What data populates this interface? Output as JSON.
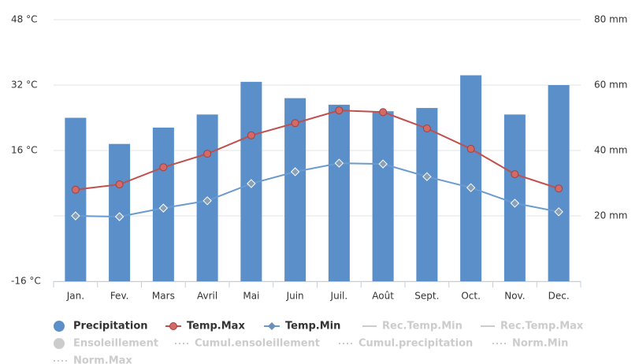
{
  "chart_data": {
    "type": "bar-line",
    "categories": [
      "Jan.",
      "Fev.",
      "Mars",
      "Avril",
      "Mai",
      "Juin",
      "Juil.",
      "Août",
      "Sept.",
      "Oct.",
      "Nov.",
      "Dec."
    ],
    "series": [
      {
        "name": "Precipitation",
        "type": "bar",
        "axis": "y2",
        "color": "#5b8fc9",
        "values": [
          50,
          42,
          47,
          51,
          61,
          56,
          54,
          52,
          53,
          63,
          51,
          60
        ]
      },
      {
        "name": "Temp.Max",
        "type": "line",
        "marker": "circle",
        "color": "#c0504d",
        "values": [
          6.4,
          7.7,
          11.9,
          15.2,
          19.7,
          22.7,
          25.8,
          25.4,
          21.4,
          16.4,
          10.2,
          6.7
        ]
      },
      {
        "name": "Temp.Min",
        "type": "line",
        "marker": "diamond",
        "color": "#6a9bd0",
        "values": [
          0,
          -0.2,
          1.9,
          3.7,
          7.9,
          10.8,
          12.9,
          12.7,
          9.6,
          6.9,
          3.1,
          1.0
        ]
      }
    ],
    "hidden_series": [
      {
        "name": "Rec.Temp.Min",
        "marker": "line"
      },
      {
        "name": "Rec.Temp.Max",
        "marker": "line"
      },
      {
        "name": "Ensoleillement",
        "marker": "circle"
      },
      {
        "name": "Cumul.ensoleillement",
        "marker": "dotted"
      },
      {
        "name": "Cumul.precipitation",
        "marker": "dotted"
      },
      {
        "name": "Norm.Min",
        "marker": "dotted"
      },
      {
        "name": "Norm.Max",
        "marker": "dotted"
      }
    ],
    "ylim": [
      -16,
      48
    ],
    "yticks": [
      {
        "value": -16,
        "label": "-16 °C"
      },
      {
        "value": 16,
        "label": "16 °C"
      },
      {
        "value": 32,
        "label": "32 °C"
      },
      {
        "value": 48,
        "label": "48 °C"
      }
    ],
    "y2lim": [
      0,
      80
    ],
    "y2ticks": [
      {
        "value": 20,
        "label": "20 mm"
      },
      {
        "value": 40,
        "label": "40 mm"
      },
      {
        "value": 60,
        "label": "60 mm"
      },
      {
        "value": 80,
        "label": "80 mm"
      }
    ],
    "grid": true
  }
}
